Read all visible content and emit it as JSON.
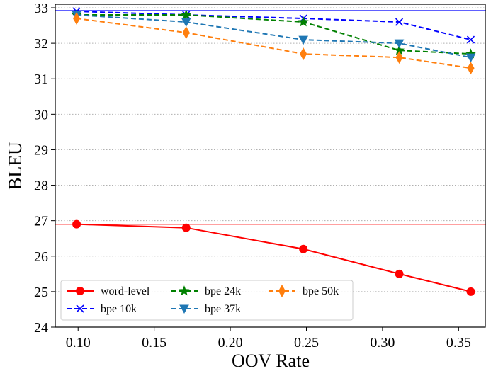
{
  "chart_data": {
    "type": "line",
    "title": "",
    "xlabel": "OOV Rate",
    "ylabel": "BLEU",
    "xlim": [
      0.085,
      0.368
    ],
    "ylim": [
      24,
      33.1
    ],
    "x_ticks": [
      0.1,
      0.15,
      0.2,
      0.25,
      0.3,
      0.35
    ],
    "x_tick_labels": [
      "0.10",
      "0.15",
      "0.20",
      "0.25",
      "0.30",
      "0.35"
    ],
    "y_ticks": [
      24,
      25,
      26,
      27,
      28,
      29,
      30,
      31,
      32,
      33
    ],
    "y_tick_labels": [
      "24",
      "25",
      "26",
      "27",
      "28",
      "29",
      "30",
      "31",
      "32",
      "33"
    ],
    "grid": "horizontal dotted",
    "legend_position": "bottom-left",
    "series": [
      {
        "name": "word-level",
        "color": "#ff0000",
        "linestyle": "solid",
        "marker": "circle",
        "x": [
          0.099,
          0.171,
          0.248,
          0.311,
          0.358
        ],
        "y": [
          26.9,
          26.8,
          26.2,
          25.5,
          25.0
        ]
      },
      {
        "name": "bpe 10k",
        "color": "#0000ff",
        "linestyle": "dashed",
        "marker": "x",
        "x": [
          0.099,
          0.171,
          0.248,
          0.311,
          0.358
        ],
        "y": [
          32.9,
          32.8,
          32.7,
          32.6,
          32.1
        ]
      },
      {
        "name": "bpe 24k",
        "color": "#008000",
        "linestyle": "dashed",
        "marker": "star",
        "x": [
          0.099,
          0.171,
          0.248,
          0.311,
          0.358
        ],
        "y": [
          32.8,
          32.8,
          32.6,
          31.8,
          31.7
        ]
      },
      {
        "name": "bpe 37k",
        "color": "#1f77b4",
        "linestyle": "dashed",
        "marker": "triangle-down",
        "x": [
          0.099,
          0.171,
          0.248,
          0.311,
          0.358
        ],
        "y": [
          32.8,
          32.6,
          32.1,
          32.0,
          31.6
        ]
      },
      {
        "name": "bpe 50k",
        "color": "#ff7f0e",
        "linestyle": "dashed",
        "marker": "thin-diamond",
        "x": [
          0.099,
          0.171,
          0.248,
          0.311,
          0.358
        ],
        "y": [
          32.7,
          32.3,
          31.7,
          31.6,
          31.3
        ]
      }
    ],
    "reference_lines": [
      {
        "y": 32.92,
        "color": "#0000ff"
      },
      {
        "y": 26.9,
        "color": "#ff0000"
      }
    ]
  }
}
